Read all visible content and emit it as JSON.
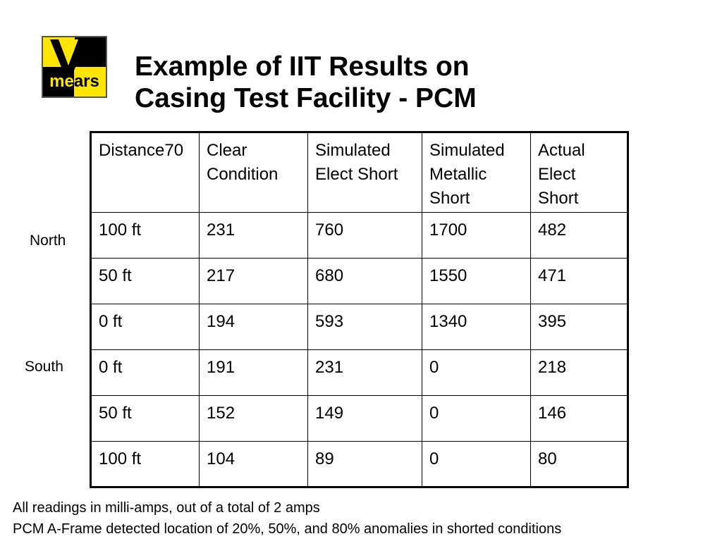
{
  "logo": {
    "text": "mears",
    "colors": {
      "yellow": "#ffe600",
      "black": "#000000"
    }
  },
  "title": {
    "line1": "Example of IIT Results on",
    "line2": "Casing Test Facility - PCM"
  },
  "side_labels": {
    "north": "North",
    "south": "South"
  },
  "table": {
    "headers": [
      "Distance70",
      "Clear Condition",
      "Simulated Elect Short",
      "Simulated Metallic Short",
      "Actual Elect Short"
    ],
    "rows": [
      [
        "100 ft",
        "231",
        "760",
        "1700",
        "482"
      ],
      [
        "50 ft",
        "217",
        "680",
        "1550",
        "471"
      ],
      [
        "0 ft",
        "194",
        "593",
        "1340",
        "395"
      ],
      [
        "0 ft",
        "191",
        "231",
        "0",
        "218"
      ],
      [
        "50 ft",
        "152",
        "149",
        "0",
        "146"
      ],
      [
        "100 ft",
        "104",
        "89",
        "0",
        "80"
      ]
    ]
  },
  "footnotes": {
    "line1": "All readings in milli-amps, out of a total of 2 amps",
    "line2": "PCM A-Frame detected location of 20%, 50%, and 80% anomalies in shorted conditions"
  }
}
